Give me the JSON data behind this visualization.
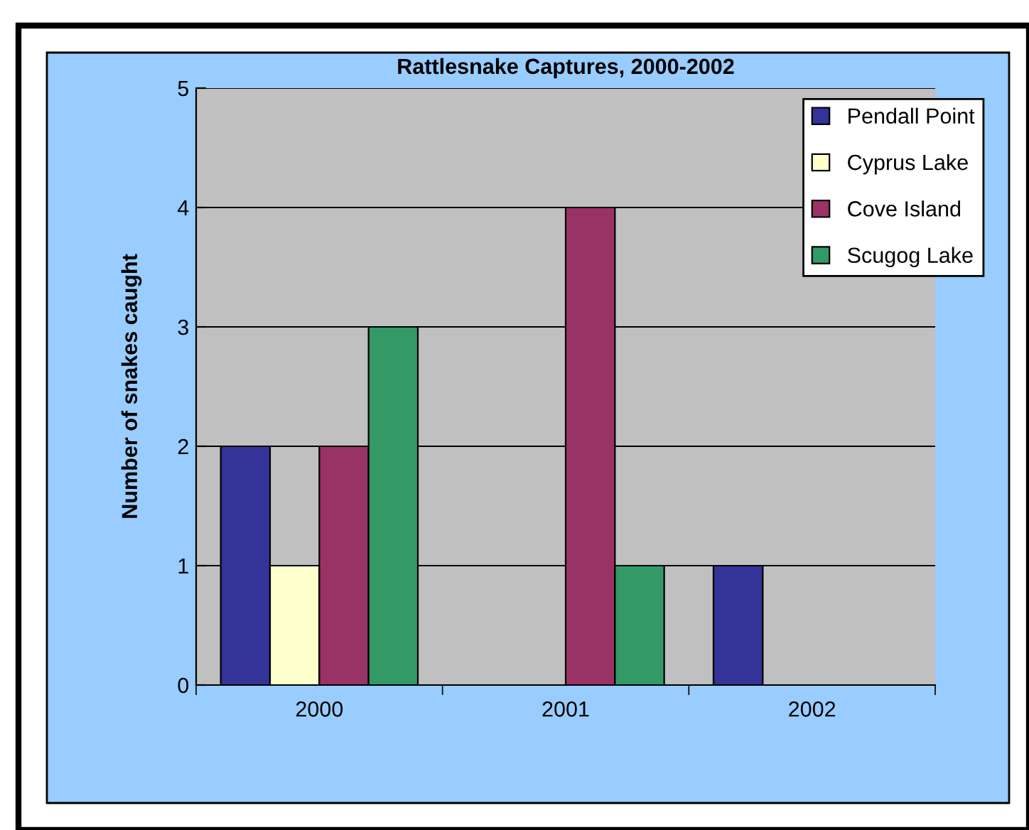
{
  "chart_data": {
    "type": "bar",
    "title": "Rattlesnake Captures, 2000-2002",
    "ylabel": "Number of snakes caught",
    "categories": [
      "2000",
      "2001",
      "2002"
    ],
    "series": [
      {
        "name": "Pendall Point",
        "color": "#333399",
        "values": [
          2,
          null,
          1
        ]
      },
      {
        "name": "Cyprus Lake",
        "color": "#ffffcc",
        "values": [
          1,
          null,
          null
        ]
      },
      {
        "name": "Cove Island",
        "color": "#993366",
        "values": [
          2,
          4,
          null
        ]
      },
      {
        "name": "Scugog Lake",
        "color": "#339966",
        "values": [
          3,
          1,
          null
        ]
      }
    ],
    "ylim": [
      0,
      5
    ],
    "yticks": [
      0,
      1,
      2,
      3,
      4,
      5
    ],
    "grid": "y",
    "legend": "top right"
  }
}
